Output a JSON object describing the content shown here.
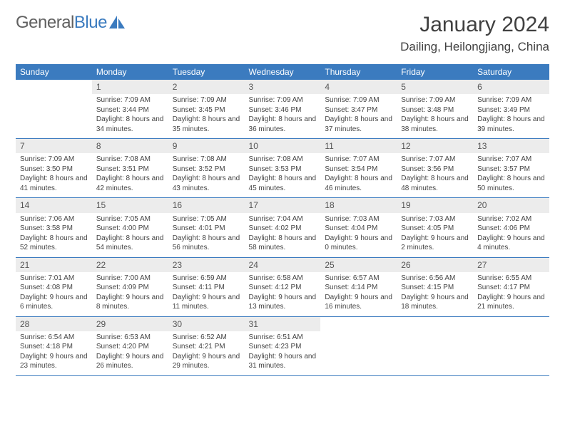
{
  "logo": {
    "part1": "General",
    "part2": "Blue"
  },
  "title": "January 2024",
  "location": "Dailing, Heilongjiang, China",
  "colors": {
    "header_bg": "#3b7bbf",
    "header_text": "#ffffff",
    "daynum_bg": "#ececec",
    "border": "#3b7bbf",
    "text": "#444444",
    "title_text": "#404040"
  },
  "weekdays": [
    "Sunday",
    "Monday",
    "Tuesday",
    "Wednesday",
    "Thursday",
    "Friday",
    "Saturday"
  ],
  "first_weekday_index": 1,
  "days": [
    {
      "n": 1,
      "sunrise": "7:09 AM",
      "sunset": "3:44 PM",
      "dl": "8 hours and 34 minutes."
    },
    {
      "n": 2,
      "sunrise": "7:09 AM",
      "sunset": "3:45 PM",
      "dl": "8 hours and 35 minutes."
    },
    {
      "n": 3,
      "sunrise": "7:09 AM",
      "sunset": "3:46 PM",
      "dl": "8 hours and 36 minutes."
    },
    {
      "n": 4,
      "sunrise": "7:09 AM",
      "sunset": "3:47 PM",
      "dl": "8 hours and 37 minutes."
    },
    {
      "n": 5,
      "sunrise": "7:09 AM",
      "sunset": "3:48 PM",
      "dl": "8 hours and 38 minutes."
    },
    {
      "n": 6,
      "sunrise": "7:09 AM",
      "sunset": "3:49 PM",
      "dl": "8 hours and 39 minutes."
    },
    {
      "n": 7,
      "sunrise": "7:09 AM",
      "sunset": "3:50 PM",
      "dl": "8 hours and 41 minutes."
    },
    {
      "n": 8,
      "sunrise": "7:08 AM",
      "sunset": "3:51 PM",
      "dl": "8 hours and 42 minutes."
    },
    {
      "n": 9,
      "sunrise": "7:08 AM",
      "sunset": "3:52 PM",
      "dl": "8 hours and 43 minutes."
    },
    {
      "n": 10,
      "sunrise": "7:08 AM",
      "sunset": "3:53 PM",
      "dl": "8 hours and 45 minutes."
    },
    {
      "n": 11,
      "sunrise": "7:07 AM",
      "sunset": "3:54 PM",
      "dl": "8 hours and 46 minutes."
    },
    {
      "n": 12,
      "sunrise": "7:07 AM",
      "sunset": "3:56 PM",
      "dl": "8 hours and 48 minutes."
    },
    {
      "n": 13,
      "sunrise": "7:07 AM",
      "sunset": "3:57 PM",
      "dl": "8 hours and 50 minutes."
    },
    {
      "n": 14,
      "sunrise": "7:06 AM",
      "sunset": "3:58 PM",
      "dl": "8 hours and 52 minutes."
    },
    {
      "n": 15,
      "sunrise": "7:05 AM",
      "sunset": "4:00 PM",
      "dl": "8 hours and 54 minutes."
    },
    {
      "n": 16,
      "sunrise": "7:05 AM",
      "sunset": "4:01 PM",
      "dl": "8 hours and 56 minutes."
    },
    {
      "n": 17,
      "sunrise": "7:04 AM",
      "sunset": "4:02 PM",
      "dl": "8 hours and 58 minutes."
    },
    {
      "n": 18,
      "sunrise": "7:03 AM",
      "sunset": "4:04 PM",
      "dl": "9 hours and 0 minutes."
    },
    {
      "n": 19,
      "sunrise": "7:03 AM",
      "sunset": "4:05 PM",
      "dl": "9 hours and 2 minutes."
    },
    {
      "n": 20,
      "sunrise": "7:02 AM",
      "sunset": "4:06 PM",
      "dl": "9 hours and 4 minutes."
    },
    {
      "n": 21,
      "sunrise": "7:01 AM",
      "sunset": "4:08 PM",
      "dl": "9 hours and 6 minutes."
    },
    {
      "n": 22,
      "sunrise": "7:00 AM",
      "sunset": "4:09 PM",
      "dl": "9 hours and 8 minutes."
    },
    {
      "n": 23,
      "sunrise": "6:59 AM",
      "sunset": "4:11 PM",
      "dl": "9 hours and 11 minutes."
    },
    {
      "n": 24,
      "sunrise": "6:58 AM",
      "sunset": "4:12 PM",
      "dl": "9 hours and 13 minutes."
    },
    {
      "n": 25,
      "sunrise": "6:57 AM",
      "sunset": "4:14 PM",
      "dl": "9 hours and 16 minutes."
    },
    {
      "n": 26,
      "sunrise": "6:56 AM",
      "sunset": "4:15 PM",
      "dl": "9 hours and 18 minutes."
    },
    {
      "n": 27,
      "sunrise": "6:55 AM",
      "sunset": "4:17 PM",
      "dl": "9 hours and 21 minutes."
    },
    {
      "n": 28,
      "sunrise": "6:54 AM",
      "sunset": "4:18 PM",
      "dl": "9 hours and 23 minutes."
    },
    {
      "n": 29,
      "sunrise": "6:53 AM",
      "sunset": "4:20 PM",
      "dl": "9 hours and 26 minutes."
    },
    {
      "n": 30,
      "sunrise": "6:52 AM",
      "sunset": "4:21 PM",
      "dl": "9 hours and 29 minutes."
    },
    {
      "n": 31,
      "sunrise": "6:51 AM",
      "sunset": "4:23 PM",
      "dl": "9 hours and 31 minutes."
    }
  ],
  "labels": {
    "sunrise": "Sunrise:",
    "sunset": "Sunset:",
    "daylight": "Daylight:"
  }
}
